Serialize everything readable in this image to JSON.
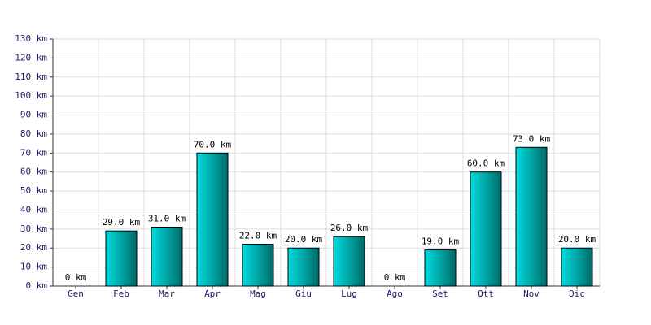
{
  "chart_data": {
    "type": "bar",
    "categories": [
      "Gen",
      "Feb",
      "Mar",
      "Apr",
      "Mag",
      "Giu",
      "Lug",
      "Ago",
      "Set",
      "Ott",
      "Nov",
      "Dic"
    ],
    "values": [
      0,
      29,
      31,
      70,
      22,
      20,
      26,
      0,
      19,
      60,
      73,
      20
    ],
    "value_labels": [
      "0 km",
      "29.0 km",
      "31.0 km",
      "70.0 km",
      "22.0 km",
      "20.0 km",
      "26.0 km",
      "0 km",
      "19.0 km",
      "60.0 km",
      "73.0 km",
      "20.0 km"
    ],
    "color": "#00dede",
    "ylim": [
      0,
      130
    ],
    "yticks": [
      {
        "value": 0,
        "label": "0 km"
      },
      {
        "value": 10,
        "label": "10 km"
      },
      {
        "value": 20,
        "label": "20 km"
      },
      {
        "value": 30,
        "label": "30 km"
      },
      {
        "value": 40,
        "label": "40 km"
      },
      {
        "value": 50,
        "label": "50 km"
      },
      {
        "value": 60,
        "label": "60 km"
      },
      {
        "value": 70,
        "label": "70 km"
      },
      {
        "value": 80,
        "label": "80 km"
      },
      {
        "value": 90,
        "label": "90 km"
      },
      {
        "value": 100,
        "label": "100 km"
      },
      {
        "value": 110,
        "label": "110 km"
      },
      {
        "value": 120,
        "label": "120 km"
      },
      {
        "value": 130,
        "label": "130 km"
      }
    ],
    "grid": true
  }
}
